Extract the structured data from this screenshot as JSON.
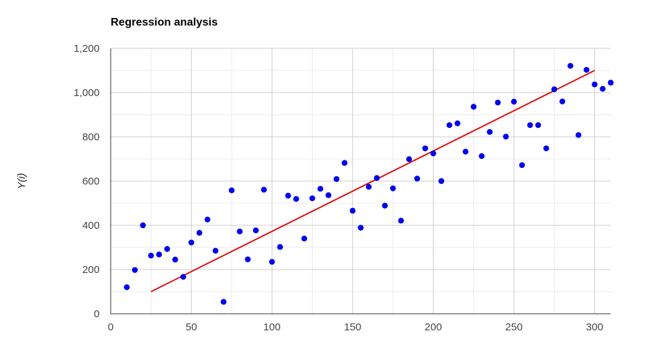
{
  "chart_data": {
    "type": "scatter",
    "title": "Regression analysis",
    "xlabel": "",
    "ylabel": "Y(i)",
    "xlim": [
      0,
      310
    ],
    "ylim": [
      0,
      1200
    ],
    "x_ticks": [
      0,
      50,
      100,
      150,
      200,
      250,
      300
    ],
    "y_ticks": [
      0,
      200,
      400,
      600,
      800,
      1000,
      1200
    ],
    "x_tick_labels": [
      "0",
      "50",
      "100",
      "150",
      "200",
      "250",
      "300"
    ],
    "y_tick_labels": [
      "0",
      "200",
      "400",
      "600",
      "800",
      "1,000",
      "1,200"
    ],
    "grid": true,
    "legend": "none",
    "colors": {
      "points": "#0000ee",
      "trendline": "#e01010",
      "grid_major": "#cccccc",
      "grid_minor": "#ebebeb",
      "axis": "#333333"
    },
    "series": [
      {
        "kind": "points",
        "x": [
          10,
          15,
          20,
          25,
          30,
          35,
          40,
          45,
          50,
          55,
          60,
          65,
          70,
          75,
          80,
          85,
          90,
          95,
          100,
          105,
          110,
          115,
          120,
          125,
          130,
          135,
          140,
          145,
          150,
          155,
          160,
          165,
          170,
          175,
          180,
          185,
          190,
          195,
          200,
          205,
          210,
          215,
          220,
          225,
          230,
          235,
          240,
          245,
          250,
          255,
          260,
          265,
          270,
          275,
          280,
          285,
          290,
          295,
          300,
          305,
          310
        ],
        "y": [
          120,
          198,
          400,
          263,
          268,
          293,
          245,
          167,
          322,
          366,
          426,
          285,
          54,
          558,
          372,
          246,
          377,
          561,
          235,
          302,
          534,
          519,
          340,
          522,
          565,
          536,
          609,
          682,
          466,
          389,
          574,
          614,
          489,
          567,
          421,
          699,
          611,
          748,
          725,
          600,
          853,
          861,
          733,
          936,
          713,
          822,
          955,
          801,
          959,
          672,
          853,
          853,
          748,
          1015,
          960,
          1121,
          808,
          1103,
          1037,
          1017,
          1045
        ]
      },
      {
        "kind": "trendline",
        "x": [
          25,
          300
        ],
        "y": [
          100,
          1100
        ]
      }
    ]
  }
}
